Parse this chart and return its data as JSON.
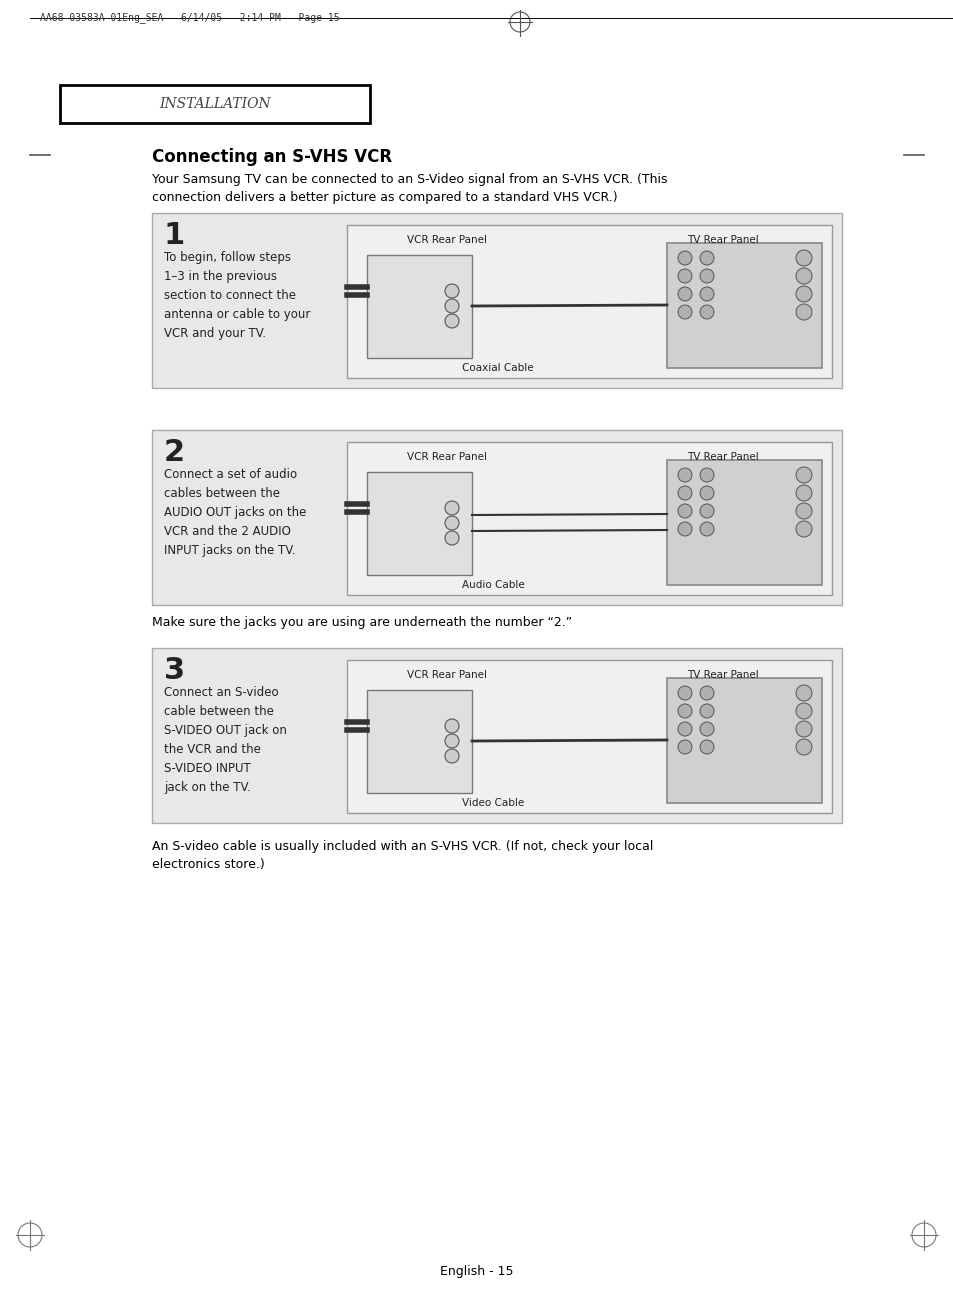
{
  "page_bg": "#ffffff",
  "header_text": "AA68-03583A-01Eng_SEA   6/14/05   2:14 PM   Page 15",
  "section_label": "INSTALLATION",
  "section_label_font": "small-caps",
  "title": "Connecting an S-VHS VCR",
  "intro_text": "Your Samsung TV can be connected to an S-Video signal from an S-VHS VCR. (This\nconnection delivers a better picture as compared to a standard VHS VCR.)",
  "step1_num": "1",
  "step1_text": "To begin, follow steps\n1–3 in the previous\nsection to connect the\nantenna or cable to your\nVCR and your TV.",
  "step1_vcr_label": "VCR Rear Panel",
  "step1_tv_label": "TV Rear Panel",
  "step1_cable_label": "Coaxial Cable",
  "step2_num": "2",
  "step2_text": "Connect a set of audio\ncables between the\nAUDIO OUT jacks on the\nVCR and the 2 AUDIO\nINPUT jacks on the TV.",
  "step2_vcr_label": "VCR Rear Panel",
  "step2_tv_label": "TV Rear Panel",
  "step2_cable_label": "Audio Cable",
  "step2_note": "Make sure the jacks you are using are underneath the number “2.”",
  "step3_num": "3",
  "step3_text": "Connect an S-video\ncable between the\nS-VIDEO OUT jack on\nthe VCR and the\nS-VIDEO INPUT\njack on the TV.",
  "step3_vcr_label": "VCR Rear Panel",
  "step3_tv_label": "TV Rear Panel",
  "step3_cable_label": "Video Cable",
  "footer_note": "An S-video cable is usually included with an S-VHS VCR. (If not, check your local\nelectronics store.)",
  "page_num": "English - 15",
  "box_bg": "#e8e8e8",
  "diagram_bg": "#f0f0f0",
  "tv_panel_bg": "#d0d0d0",
  "border_color": "#888888",
  "text_color": "#000000",
  "dark_color": "#222222"
}
